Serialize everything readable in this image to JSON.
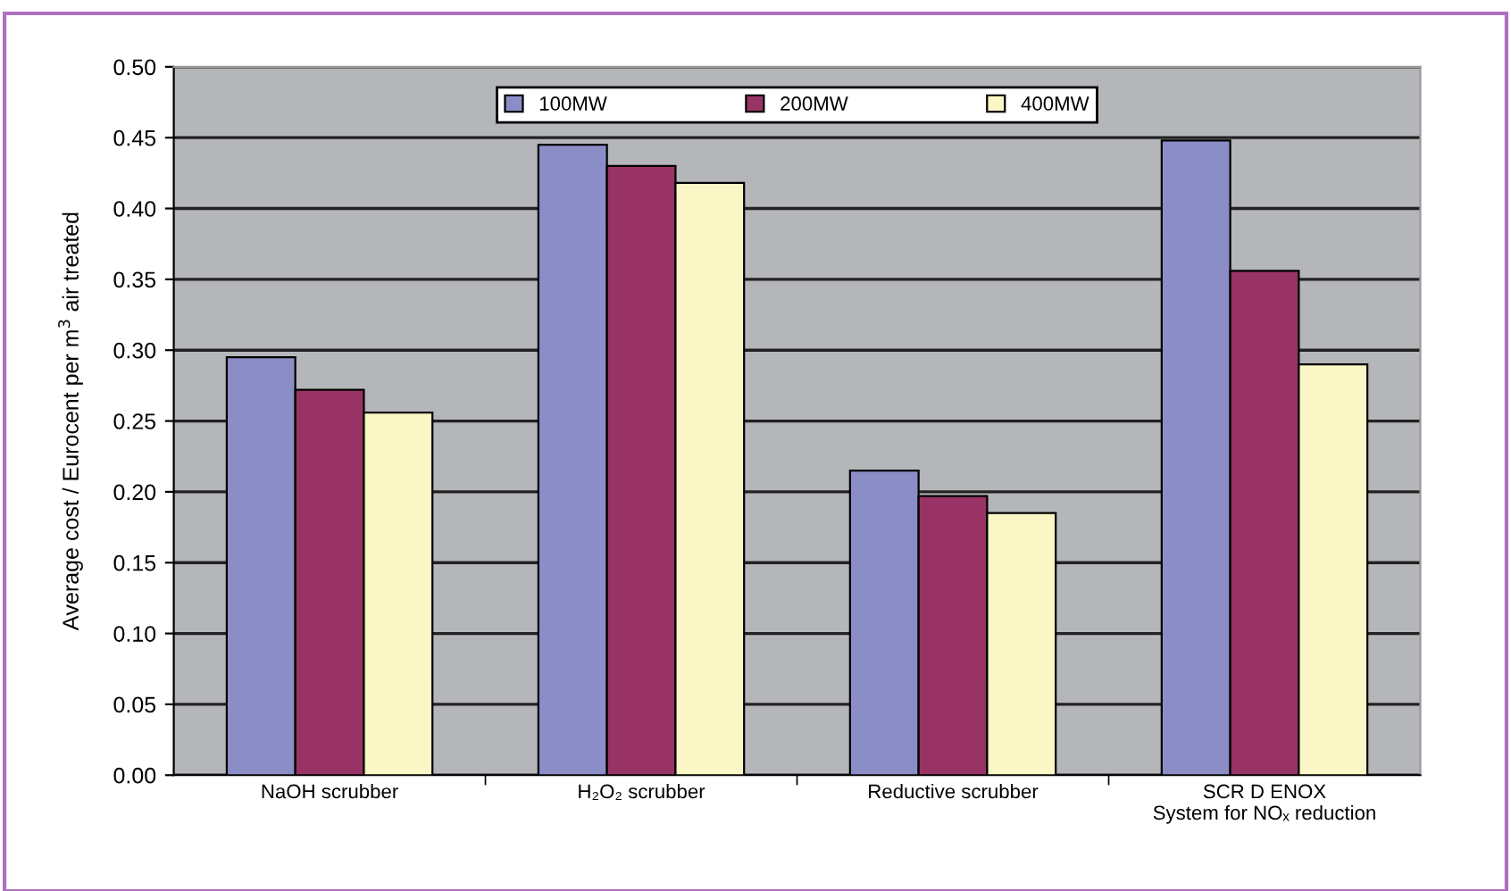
{
  "chart_data": {
    "type": "bar",
    "ylabel": "Average cost / Eurocent per m$^{3}$ air treated",
    "categories": [
      "NaOH scrubber",
      "H₂O₂ scrubber",
      "Reductive scrubber",
      "SCR D ENOX\nSystem for NOₓ reduction"
    ],
    "series": [
      {
        "name": "100MW",
        "color": "#8b8dc6",
        "values": [
          0.295,
          0.445,
          0.215,
          0.448
        ]
      },
      {
        "name": "200MW",
        "color": "#993366",
        "values": [
          0.272,
          0.43,
          0.197,
          0.356
        ]
      },
      {
        "name": "400MW",
        "color": "#fbf6c6",
        "values": [
          0.256,
          0.418,
          0.185,
          0.29
        ]
      }
    ],
    "ylim": [
      0,
      0.5
    ],
    "yticks": [
      {
        "value": 0,
        "label": "0.00"
      },
      {
        "value": 0.05,
        "label": "0.05"
      },
      {
        "value": 0.1,
        "label": "0.10"
      },
      {
        "value": 0.15,
        "label": "0.15"
      },
      {
        "value": 0.2,
        "label": "0.20"
      },
      {
        "value": 0.25,
        "label": "0.25"
      },
      {
        "value": 0.3,
        "label": "0.30"
      },
      {
        "value": 0.35,
        "label": "0.35"
      },
      {
        "value": 0.4,
        "label": "0.40"
      },
      {
        "value": 0.45,
        "label": "0.45"
      },
      {
        "value": 0.5,
        "label": "0.50"
      }
    ],
    "grid": "y",
    "legend": "top"
  }
}
